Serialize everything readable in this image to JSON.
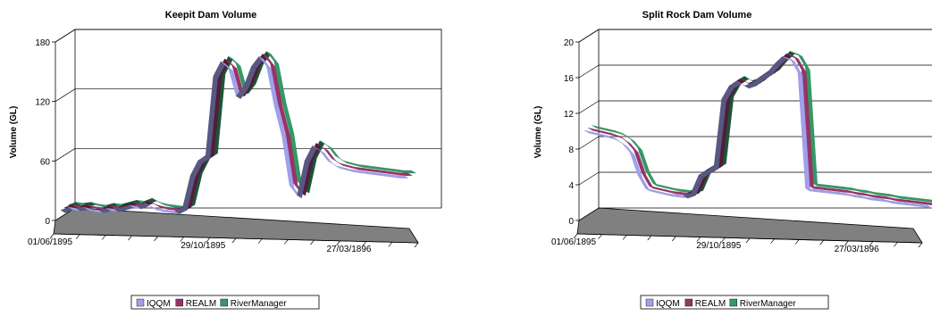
{
  "colors": {
    "IQQM": "#a0a0ee",
    "REALM": "#993366",
    "RiverManager": "#339966",
    "floor": "#808080"
  },
  "chart_data": [
    {
      "type": "line",
      "title": "Keepit Dam Volume",
      "ylabel": "Volume (GL)",
      "ylim": [
        0,
        180
      ],
      "yticks": [
        "0",
        "60",
        "120",
        "180"
      ],
      "xlim": [
        "01/06/1895",
        "15/07/1896"
      ],
      "xticks": [
        "01/06/1895",
        "29/10/1895",
        "27/03/1896"
      ],
      "legend_position": "bottom",
      "series": [
        {
          "name": "IQQM",
          "values": [
            5,
            8,
            7,
            8,
            6,
            5,
            7,
            6,
            8,
            10,
            9,
            12,
            8,
            6,
            5,
            4,
            8,
            40,
            55,
            60,
            140,
            155,
            148,
            120,
            130,
            150,
            160,
            150,
            110,
            80,
            30,
            20,
            55,
            70,
            65,
            55,
            50,
            48,
            46,
            45,
            44,
            43,
            42,
            41,
            40,
            40
          ]
        },
        {
          "name": "REALM",
          "values": [
            5,
            8,
            7,
            8,
            6,
            5,
            7,
            6,
            8,
            10,
            9,
            12,
            8,
            6,
            5,
            4,
            8,
            40,
            55,
            60,
            140,
            155,
            148,
            120,
            130,
            150,
            160,
            150,
            110,
            80,
            30,
            20,
            55,
            70,
            65,
            55,
            50,
            48,
            46,
            45,
            44,
            43,
            42,
            41,
            40,
            40
          ]
        },
        {
          "name": "RiverManager",
          "values": [
            5,
            8,
            7,
            8,
            6,
            5,
            7,
            6,
            8,
            10,
            9,
            12,
            8,
            6,
            5,
            4,
            8,
            40,
            55,
            60,
            140,
            155,
            148,
            120,
            130,
            150,
            160,
            150,
            110,
            80,
            30,
            20,
            55,
            70,
            65,
            55,
            50,
            48,
            46,
            45,
            44,
            43,
            42,
            41,
            40,
            40
          ]
        }
      ]
    },
    {
      "type": "line",
      "title": "Split Rock Dam Volume",
      "ylabel": "Volume (GL)",
      "ylim": [
        0,
        20
      ],
      "yticks": [
        "0",
        "4",
        "8",
        "12",
        "16",
        "20"
      ],
      "xlim": [
        "01/06/1895",
        "15/07/1896"
      ],
      "xticks": [
        "01/06/1895",
        "29/10/1895",
        "27/03/1896"
      ],
      "legend_position": "bottom",
      "series": [
        {
          "name": "IQQM",
          "values": [
            9.5,
            9.3,
            9.1,
            8.9,
            8.6,
            8.0,
            7.0,
            4.5,
            3.0,
            2.8,
            2.6,
            2.4,
            2.3,
            2.2,
            2.5,
            4.5,
            5.0,
            5.5,
            13.0,
            14.5,
            15.0,
            14.5,
            14.8,
            15.5,
            16.0,
            17.0,
            17.8,
            17.5,
            16.0,
            3.0,
            2.9,
            2.8,
            2.7,
            2.6,
            2.5,
            2.3,
            2.2,
            2.0,
            1.9,
            1.8,
            1.6,
            1.5,
            1.4,
            1.3,
            1.2,
            1.1
          ]
        },
        {
          "name": "REALM",
          "values": [
            9.5,
            9.3,
            9.1,
            8.9,
            8.6,
            8.0,
            7.0,
            4.5,
            3.0,
            2.8,
            2.6,
            2.4,
            2.3,
            2.2,
            2.5,
            4.5,
            5.0,
            5.5,
            13.0,
            14.5,
            15.0,
            14.5,
            14.8,
            15.5,
            16.0,
            17.0,
            17.8,
            17.5,
            16.0,
            3.0,
            2.9,
            2.8,
            2.7,
            2.6,
            2.5,
            2.3,
            2.2,
            2.0,
            1.9,
            1.8,
            1.6,
            1.5,
            1.4,
            1.3,
            1.2,
            1.1
          ]
        },
        {
          "name": "RiverManager",
          "values": [
            9.5,
            9.3,
            9.1,
            8.9,
            8.6,
            8.0,
            7.0,
            4.5,
            3.0,
            2.8,
            2.6,
            2.4,
            2.3,
            2.2,
            2.5,
            4.5,
            5.0,
            5.5,
            13.0,
            14.5,
            15.0,
            14.5,
            14.8,
            15.5,
            16.0,
            17.0,
            17.8,
            17.5,
            16.0,
            3.0,
            2.9,
            2.8,
            2.7,
            2.6,
            2.5,
            2.3,
            2.2,
            2.0,
            1.9,
            1.8,
            1.6,
            1.5,
            1.4,
            1.3,
            1.2,
            1.1
          ]
        }
      ]
    }
  ]
}
